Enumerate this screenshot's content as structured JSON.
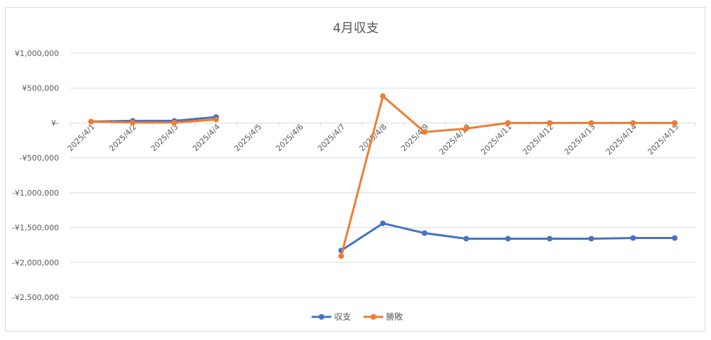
{
  "chart_data": {
    "type": "line",
    "title": "4月収支",
    "xlabel": "",
    "ylabel": "",
    "categories": [
      "2025/4/1",
      "2025/4/2",
      "2025/4/3",
      "2025/4/4",
      "2025/4/5",
      "2025/4/6",
      "2025/4/7",
      "2025/4/8",
      "2025/4/9",
      "2025/4/10",
      "2025/4/11",
      "2025/4/12",
      "2025/4/13",
      "2025/4/14",
      "2025/4/15"
    ],
    "y_ticks": [
      {
        "value": 1000000,
        "label": "¥1,000,000"
      },
      {
        "value": 500000,
        "label": "¥500,000"
      },
      {
        "value": 0,
        "label": "¥-"
      },
      {
        "value": -500000,
        "label": "-¥500,000"
      },
      {
        "value": -1000000,
        "label": "-¥1,000,000"
      },
      {
        "value": -1500000,
        "label": "-¥1,500,000"
      },
      {
        "value": -2000000,
        "label": "-¥2,000,000"
      },
      {
        "value": -2500000,
        "label": "-¥2,500,000"
      }
    ],
    "ylim": [
      -2500000,
      1000000
    ],
    "grid": true,
    "legend_position": "bottom",
    "series": [
      {
        "name": "収支",
        "color": "#4472C4",
        "values": [
          20000,
          30000,
          30000,
          85000,
          null,
          null,
          -1830000,
          -1440000,
          -1580000,
          -1660000,
          -1660000,
          -1660000,
          -1660000,
          -1650000,
          -1650000
        ]
      },
      {
        "name": "勝敗",
        "color": "#ED7D31",
        "values": [
          20000,
          5000,
          5000,
          50000,
          null,
          null,
          -1910000,
          385000,
          -130000,
          -80000,
          0,
          0,
          0,
          0,
          0
        ]
      }
    ]
  }
}
